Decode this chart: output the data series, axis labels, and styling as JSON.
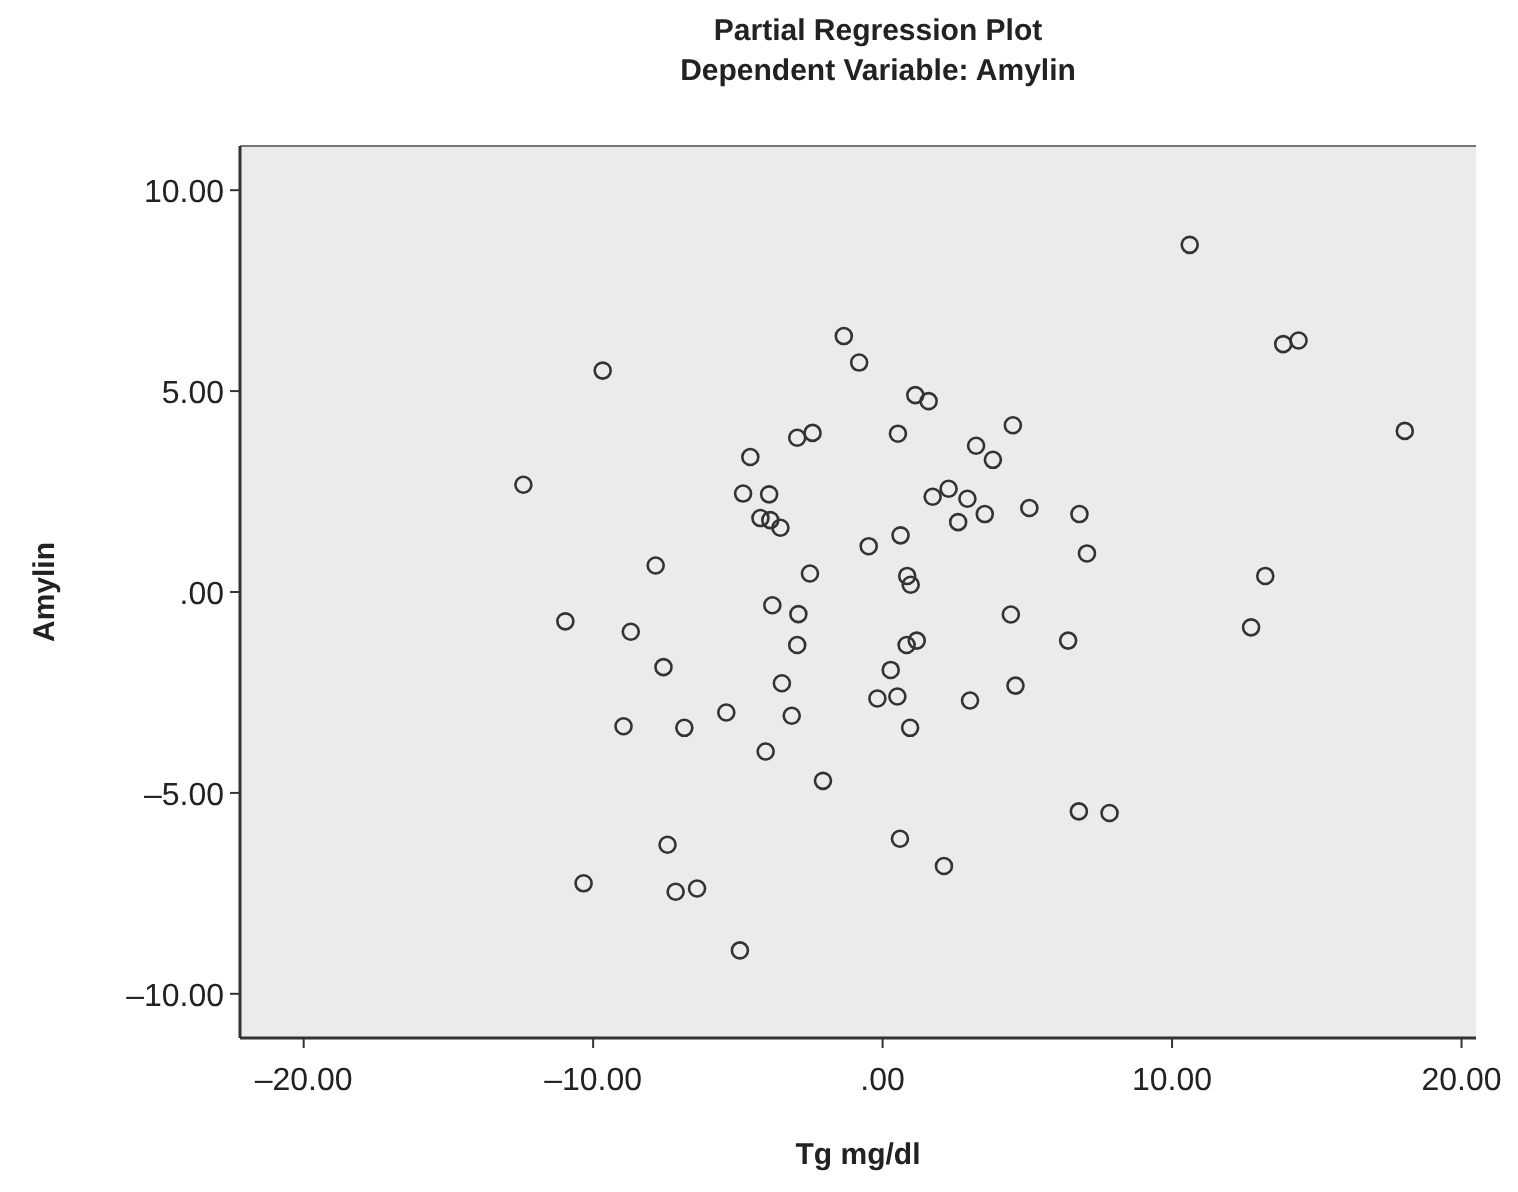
{
  "chart_data": {
    "type": "scatter",
    "title": "Partial Regression Plot",
    "subtitle": "Dependent Variable: Amylin",
    "xlabel": "Tg mg/dl",
    "ylabel": "Amylin",
    "xlim": [
      -22.2,
      20.5
    ],
    "ylim": [
      -11.1,
      11.1
    ],
    "xticks": [
      {
        "value": -20,
        "label": "–20.00"
      },
      {
        "value": -10,
        "label": "–10.00"
      },
      {
        "value": 0,
        "label": ".00"
      },
      {
        "value": 10,
        "label": "10.00"
      },
      {
        "value": 20,
        "label": "20.00"
      }
    ],
    "yticks": [
      {
        "value": -10,
        "label": "–10.00"
      },
      {
        "value": -5,
        "label": "–5.00"
      },
      {
        "value": 0,
        "label": ".00"
      },
      {
        "value": 5,
        "label": "5.00"
      },
      {
        "value": 10,
        "label": "10.00"
      }
    ],
    "grid": false,
    "marker": "circle",
    "series": [
      {
        "color": "#333333",
        "x": [
          -9.67,
          -12.41,
          -7.84,
          -1.34,
          -2.95,
          -2.42,
          -4.57,
          -4.82,
          -3.92,
          -4.22,
          -3.88,
          -3.53,
          -2.51,
          -0.81,
          10.61,
          13.84,
          14.37,
          18.04,
          1.13,
          1.59,
          0.53,
          4.5,
          3.23,
          3.81,
          1.73,
          2.28,
          2.93,
          2.61,
          3.53,
          5.07,
          6.8,
          7.06,
          -0.48,
          0.62,
          0.85,
          0.97,
          13.22,
          -10.96,
          -8.7,
          -7.57,
          -3.81,
          -2.91,
          -2.95,
          -3.48,
          -3.14,
          -5.4,
          -8.95,
          -6.85,
          -4.04,
          -2.06,
          -7.43,
          -10.33,
          -7.15,
          -6.41,
          -4.93,
          4.43,
          6.41,
          12.73,
          0.83,
          1.18,
          0.28,
          -0.18,
          0.51,
          0.95,
          3.02,
          4.59,
          6.78,
          7.84,
          0.6,
          2.12
        ],
        "values": [
          5.51,
          2.67,
          0.66,
          6.37,
          3.84,
          3.96,
          3.36,
          2.45,
          2.43,
          1.84,
          1.79,
          1.6,
          0.46,
          5.71,
          8.64,
          6.17,
          6.26,
          4.01,
          4.9,
          4.75,
          3.94,
          4.15,
          3.64,
          3.29,
          2.37,
          2.57,
          2.32,
          1.74,
          1.94,
          2.09,
          1.94,
          0.96,
          1.14,
          1.41,
          0.4,
          0.18,
          0.4,
          -0.73,
          -0.99,
          -1.87,
          -0.33,
          -0.55,
          -1.32,
          -2.27,
          -3.08,
          -3.0,
          -3.34,
          -3.38,
          -3.97,
          -4.7,
          -6.29,
          -7.25,
          -7.46,
          -7.38,
          -8.92,
          -0.56,
          -1.21,
          -0.88,
          -1.32,
          -1.21,
          -1.94,
          -2.65,
          -2.6,
          -3.38,
          -2.7,
          -2.33,
          -5.46,
          -5.5,
          -6.14,
          -6.82
        ]
      }
    ]
  }
}
